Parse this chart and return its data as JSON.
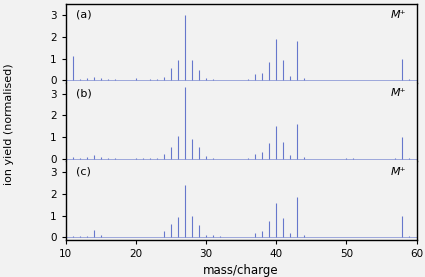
{
  "panel_labels": [
    "(a)",
    "(b)",
    "(c)"
  ],
  "xmin": 10,
  "xmax": 60,
  "ymin": -0.1,
  "ymax": 3.5,
  "yticks": [
    0,
    1,
    2,
    3
  ],
  "xticks": [
    10,
    20,
    30,
    40,
    50,
    60
  ],
  "xlabel": "mass/charge",
  "ylabel": "ion yield (normalised)",
  "line_color": "#6677cc",
  "bg_color": "#f2f2f2",
  "annotation": "M⁺",
  "spectra_a": [
    [
      11,
      1.1
    ],
    [
      12,
      0.07
    ],
    [
      13,
      0.12
    ],
    [
      14,
      0.15
    ],
    [
      15,
      0.09
    ],
    [
      16,
      0.06
    ],
    [
      17,
      0.05
    ],
    [
      18,
      0.04
    ],
    [
      19,
      0.03
    ],
    [
      20,
      0.13
    ],
    [
      21,
      0.04
    ],
    [
      22,
      0.05
    ],
    [
      23,
      0.07
    ],
    [
      24,
      0.18
    ],
    [
      25,
      0.55
    ],
    [
      26,
      0.95
    ],
    [
      27,
      3.0
    ],
    [
      28,
      0.95
    ],
    [
      29,
      0.5
    ],
    [
      30,
      0.12
    ],
    [
      31,
      0.07
    ],
    [
      32,
      0.04
    ],
    [
      36,
      0.05
    ],
    [
      37,
      0.28
    ],
    [
      38,
      0.35
    ],
    [
      39,
      0.85
    ],
    [
      40,
      1.9
    ],
    [
      41,
      0.95
    ],
    [
      42,
      0.22
    ],
    [
      43,
      1.8
    ],
    [
      44,
      0.12
    ],
    [
      45,
      0.04
    ],
    [
      46,
      0.04
    ],
    [
      50,
      0.04
    ],
    [
      51,
      0.04
    ],
    [
      57,
      0.04
    ],
    [
      58,
      1.0
    ],
    [
      59,
      0.06
    ]
  ],
  "spectra_b": [
    [
      11,
      0.08
    ],
    [
      12,
      0.06
    ],
    [
      13,
      0.08
    ],
    [
      14,
      0.18
    ],
    [
      15,
      0.09
    ],
    [
      16,
      0.04
    ],
    [
      17,
      0.04
    ],
    [
      19,
      0.02
    ],
    [
      20,
      0.05
    ],
    [
      21,
      0.03
    ],
    [
      22,
      0.04
    ],
    [
      23,
      0.05
    ],
    [
      24,
      0.22
    ],
    [
      25,
      0.55
    ],
    [
      26,
      1.05
    ],
    [
      27,
      3.3
    ],
    [
      28,
      0.92
    ],
    [
      29,
      0.55
    ],
    [
      30,
      0.13
    ],
    [
      31,
      0.05
    ],
    [
      36,
      0.05
    ],
    [
      37,
      0.22
    ],
    [
      38,
      0.3
    ],
    [
      39,
      0.75
    ],
    [
      40,
      1.5
    ],
    [
      41,
      0.8
    ],
    [
      42,
      0.18
    ],
    [
      43,
      1.6
    ],
    [
      44,
      0.09
    ],
    [
      50,
      0.03
    ],
    [
      51,
      0.03
    ],
    [
      57,
      0.03
    ],
    [
      58,
      1.0
    ],
    [
      59,
      0.04
    ]
  ],
  "spectra_c": [
    [
      11,
      0.07
    ],
    [
      12,
      0.06
    ],
    [
      13,
      0.08
    ],
    [
      14,
      0.32
    ],
    [
      15,
      0.1
    ],
    [
      17,
      0.03
    ],
    [
      18,
      0.04
    ],
    [
      21,
      0.04
    ],
    [
      22,
      0.03
    ],
    [
      24,
      0.28
    ],
    [
      25,
      0.6
    ],
    [
      26,
      0.95
    ],
    [
      27,
      2.4
    ],
    [
      28,
      1.0
    ],
    [
      29,
      0.55
    ],
    [
      30,
      0.13
    ],
    [
      31,
      0.1
    ],
    [
      32,
      0.07
    ],
    [
      36,
      0.04
    ],
    [
      37,
      0.22
    ],
    [
      38,
      0.28
    ],
    [
      39,
      0.75
    ],
    [
      40,
      1.6
    ],
    [
      41,
      0.9
    ],
    [
      42,
      0.22
    ],
    [
      43,
      1.85
    ],
    [
      44,
      0.09
    ],
    [
      50,
      0.02
    ],
    [
      57,
      0.04
    ],
    [
      58,
      1.0
    ],
    [
      59,
      0.07
    ]
  ]
}
